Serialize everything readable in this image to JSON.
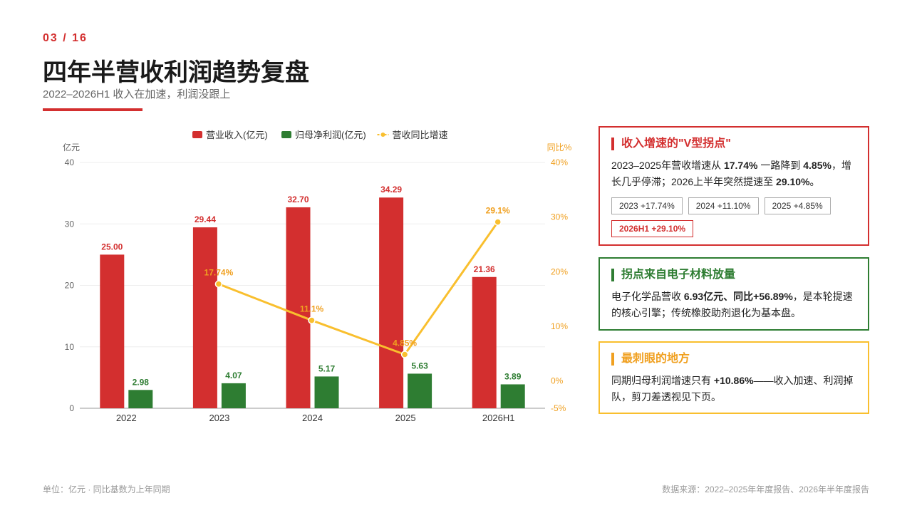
{
  "header": {
    "page_num": "03 / 16",
    "title": "四年半营收利润趋势复盘",
    "subtitle": "2022–2026H1 收入在加速，利润没跟上"
  },
  "colors": {
    "accent": "#d32f2f",
    "green": "#2e7d32",
    "yellow": "#f9bf2e",
    "orange": "#f0a020"
  },
  "chart_data": {
    "type": "bar",
    "categories": [
      "2022",
      "2023",
      "2024",
      "2025",
      "2026H1"
    ],
    "series": [
      {
        "name": "营业收入(亿元)",
        "type": "bar",
        "axis": "left",
        "color": "#d32f2f",
        "values": [
          25.0,
          29.44,
          32.7,
          34.29,
          21.36
        ],
        "labels": [
          "25.00",
          "29.44",
          "32.70",
          "34.29",
          "21.36"
        ]
      },
      {
        "name": "归母净利润(亿元)",
        "type": "bar",
        "axis": "left",
        "color": "#2e7d32",
        "values": [
          2.98,
          4.07,
          5.17,
          5.63,
          3.89
        ],
        "labels": [
          "2.98",
          "4.07",
          "5.17",
          "5.63",
          "3.89"
        ]
      },
      {
        "name": "营收同比增速",
        "type": "line",
        "axis": "right",
        "color": "#f9bf2e",
        "values": [
          null,
          17.74,
          11.1,
          4.85,
          29.1
        ],
        "labels": [
          "",
          "17.74%",
          "11.1%",
          "4.85%",
          "29.1%"
        ]
      }
    ],
    "ylabel": "亿元",
    "y2label": "同比%",
    "ylim": [
      0,
      40
    ],
    "yticks": [
      "0",
      "10",
      "20",
      "30",
      "40"
    ],
    "y2lim": [
      -5,
      40
    ],
    "y2ticks": [
      "-5%",
      "0%",
      "10%",
      "20%",
      "30%",
      "40%"
    ],
    "legend": "top-center",
    "grid": true
  },
  "cards": {
    "c1": {
      "title": "收入增速的\"V型拐点\"",
      "t1": "2023–2025年营收增速从 ",
      "b1": "17.74%",
      "t2": " 一路降到 ",
      "b2": "4.85%",
      "t3": "，增长几乎停滞；2026上半年突然提速至 ",
      "b3": "29.10%",
      "t4": "。",
      "tags": [
        "2023 +17.74%",
        "2024 +11.10%",
        "2025 +4.85%",
        "2026H1 +29.10%"
      ]
    },
    "c2": {
      "title": "拐点来自电子材料放量",
      "t1": "电子化学品营收 ",
      "b1": "6.93亿元、同比+56.89%",
      "t2": "，是本轮提速的核心引擎；传统橡胶助剂退化为基本盘。"
    },
    "c3": {
      "title": "最刺眼的地方",
      "t1": "同期归母利润增速只有 ",
      "b1": "+10.86%",
      "t2": "——收入加速、利润掉队，剪刀差透视见下页。"
    }
  },
  "footer": {
    "left": "单位：亿元 · 同比基数为上年同期",
    "right": "数据来源：2022–2025年年度报告、2026年半年度报告"
  }
}
